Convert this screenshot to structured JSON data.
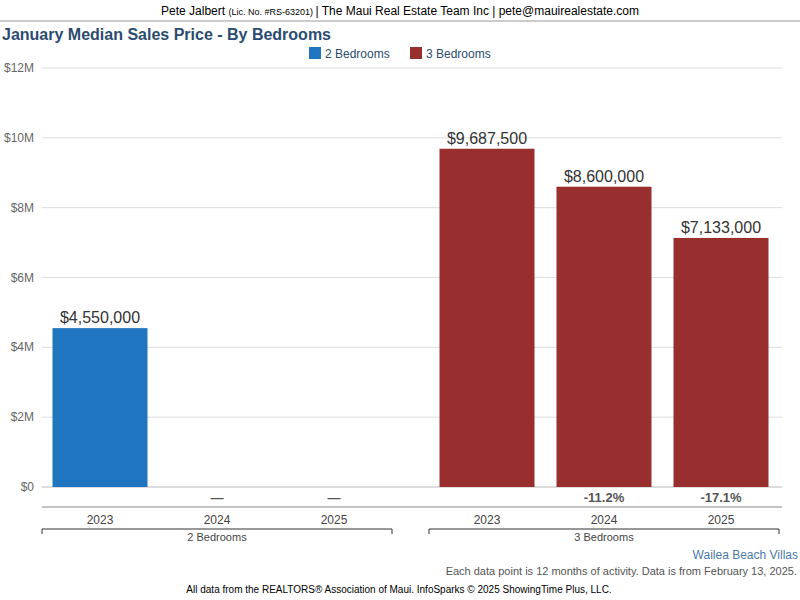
{
  "chart_data": {
    "type": "bar",
    "header": {
      "agent": "Pete Jalbert",
      "license": "(Lic. No. #RS-63201)",
      "rest": "| The Maui Real Estate Team Inc | pete@mauirealestate.com"
    },
    "title": "January Median Sales Price - By Bedrooms",
    "series": [
      {
        "name": "2 Bedrooms",
        "color": "#1f75c0",
        "categories": [
          "2023",
          "2024",
          "2025"
        ],
        "values": [
          4550000,
          null,
          null
        ],
        "value_labels": [
          "$4,550,000",
          null,
          null
        ],
        "changes": [
          null,
          null,
          null
        ],
        "change_labels": [
          null,
          "—",
          "—"
        ]
      },
      {
        "name": "3 Bedrooms",
        "color": "#992e2f",
        "categories": [
          "2023",
          "2024",
          "2025"
        ],
        "values": [
          9687500,
          8600000,
          7133000
        ],
        "value_labels": [
          "$9,687,500",
          "$8,600,000",
          "$7,133,000"
        ],
        "changes": [
          null,
          -11.2,
          -17.1
        ],
        "change_labels": [
          null,
          "-11.2%",
          "-17.1%"
        ]
      }
    ],
    "ylim": [
      0,
      12000000
    ],
    "yticks": [
      {
        "value": 0,
        "label": "$0"
      },
      {
        "value": 2000000,
        "label": "$2M"
      },
      {
        "value": 4000000,
        "label": "$4M"
      },
      {
        "value": 6000000,
        "label": "$6M"
      },
      {
        "value": 8000000,
        "label": "$8M"
      },
      {
        "value": 10000000,
        "label": "$10M"
      },
      {
        "value": 12000000,
        "label": "$12M"
      }
    ],
    "grid": true,
    "legend": "top",
    "data_labels": true,
    "location": "Wailea Beach Villas",
    "note": "Each data point is 12 months of activity. Data is from February 13, 2025.",
    "source": "All data from the REALTORS® Association of Maui. InfoSparks © 2025 ShowingTime Plus, LLC."
  }
}
